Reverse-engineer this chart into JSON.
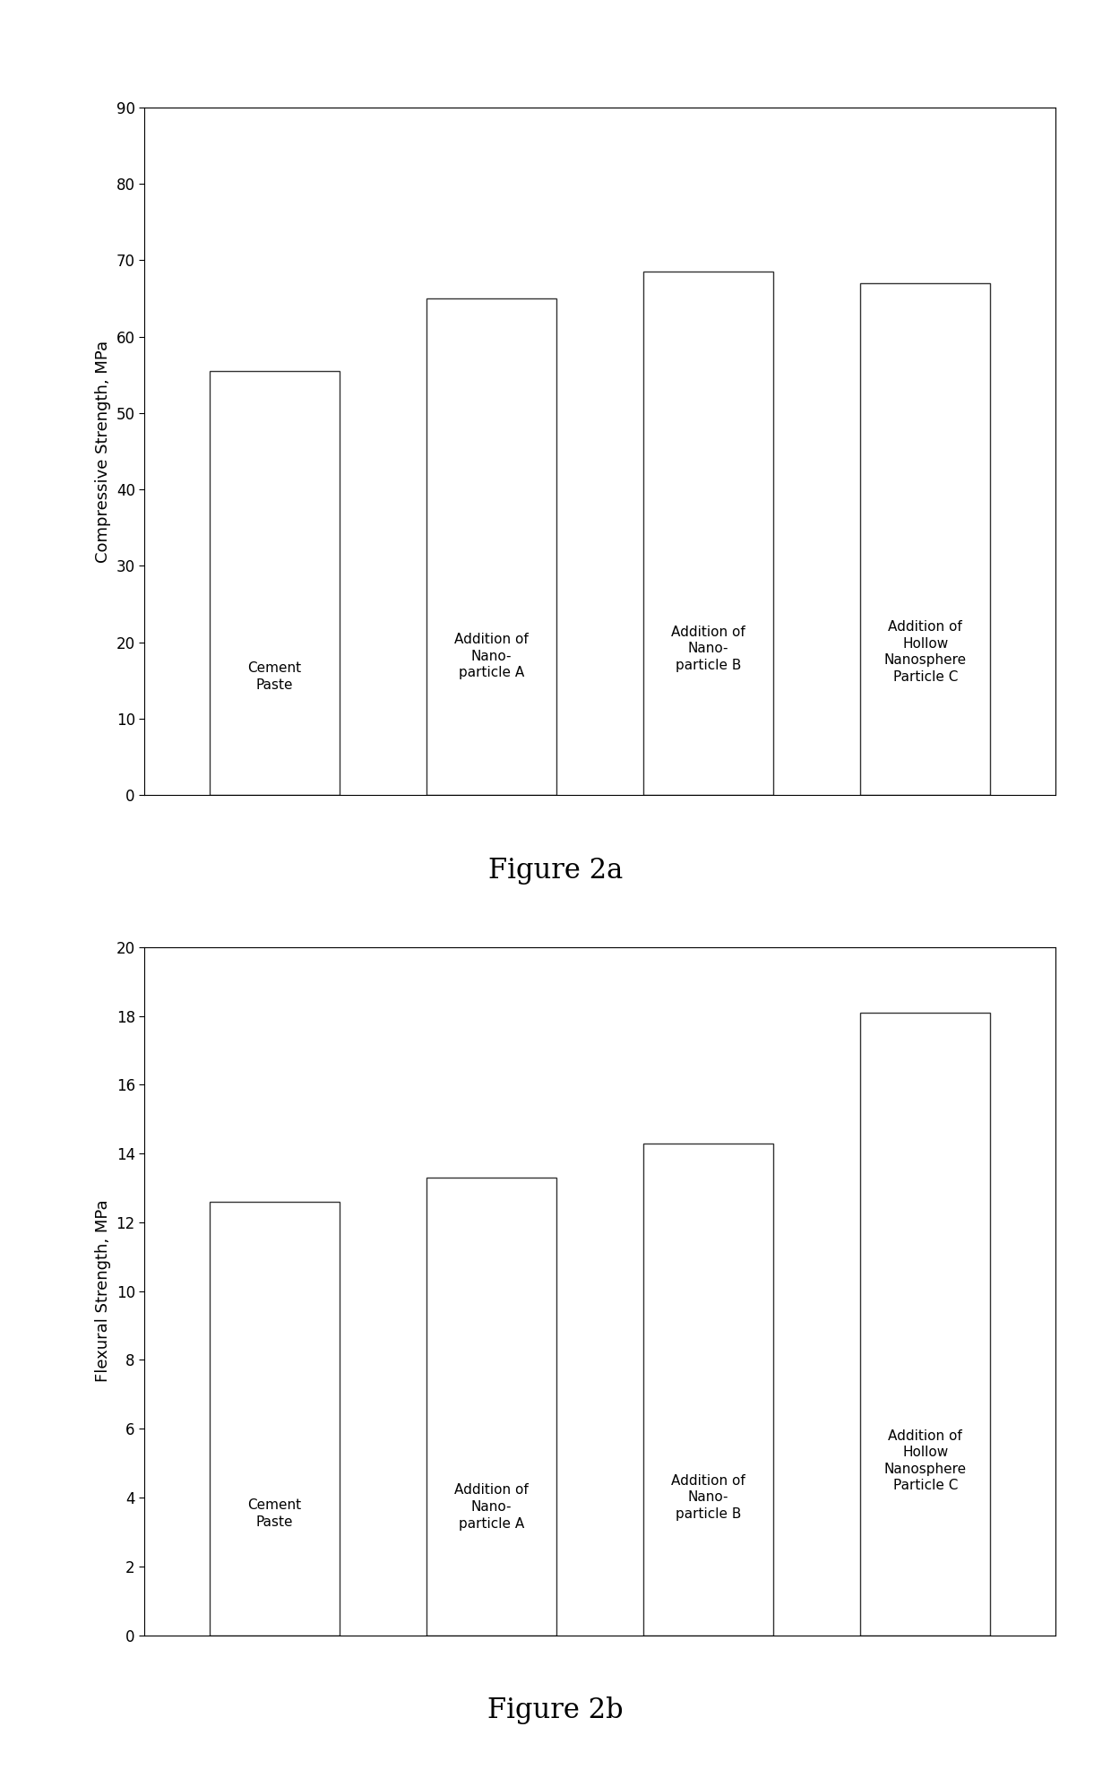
{
  "fig2a": {
    "title": "Figure 2a",
    "ylabel": "Compressive Strength, MPa",
    "categories": [
      "Cement\nPaste",
      "Addition of\nNano-\nparticle A",
      "Addition of\nNano-\nparticle B",
      "Addition of\nHollow\nNanosphere\nParticle C"
    ],
    "values": [
      55.5,
      65.0,
      68.5,
      67.0
    ],
    "ylim": [
      0,
      90
    ],
    "yticks": [
      0,
      10,
      20,
      30,
      40,
      50,
      60,
      70,
      80,
      90
    ],
    "bar_color": "#ffffff",
    "bar_edgecolor": "#333333"
  },
  "fig2b": {
    "title": "Figure 2b",
    "ylabel": "Flexural Strength, MPa",
    "categories": [
      "Cement\nPaste",
      "Addition of\nNano-\nparticle A",
      "Addition of\nNano-\nparticle B",
      "Addition of\nHollow\nNanosphere\nParticle C"
    ],
    "values": [
      12.6,
      13.3,
      14.3,
      18.1
    ],
    "ylim": [
      0,
      20
    ],
    "yticks": [
      0,
      2,
      4,
      6,
      8,
      10,
      12,
      14,
      16,
      18,
      20
    ],
    "bar_color": "#ffffff",
    "bar_edgecolor": "#333333"
  },
  "background_color": "#ffffff",
  "figure_label_fontsize": 22,
  "axis_label_fontsize": 13,
  "tick_fontsize": 12,
  "bar_label_fontsize": 11
}
